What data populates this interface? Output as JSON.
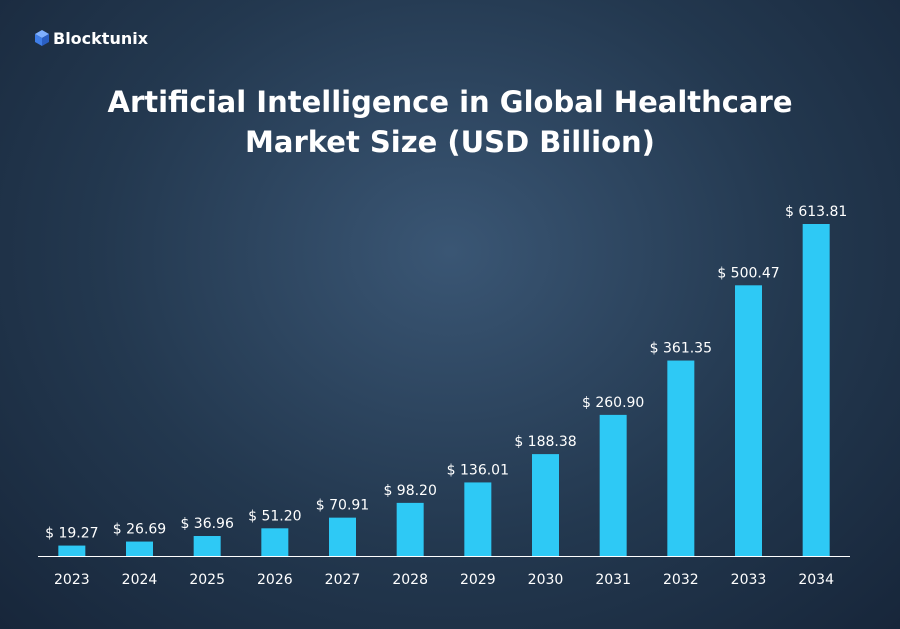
{
  "brand": "Blocktunix",
  "chart_data": {
    "type": "bar",
    "title": "Artificial Intelligence in Global Healthcare Market Size (USD Billion)",
    "categories": [
      "2023",
      "2024",
      "2025",
      "2026",
      "2027",
      "2028",
      "2029",
      "2030",
      "2031",
      "2032",
      "2033",
      "2034"
    ],
    "values": [
      19.27,
      26.69,
      36.96,
      51.2,
      70.91,
      98.2,
      136.01,
      188.38,
      260.9,
      361.35,
      500.47,
      613.81
    ],
    "value_labels": [
      "$ 19.27",
      "$ 26.69",
      "$ 36.96",
      "$ 51.20",
      "$ 70.91",
      "$ 98.20",
      "$ 136.01",
      "$ 188.38",
      "$ 260.90",
      "$ 361.35",
      "$ 500.47",
      "$ 613.81"
    ],
    "color": "#2ec9f5"
  }
}
